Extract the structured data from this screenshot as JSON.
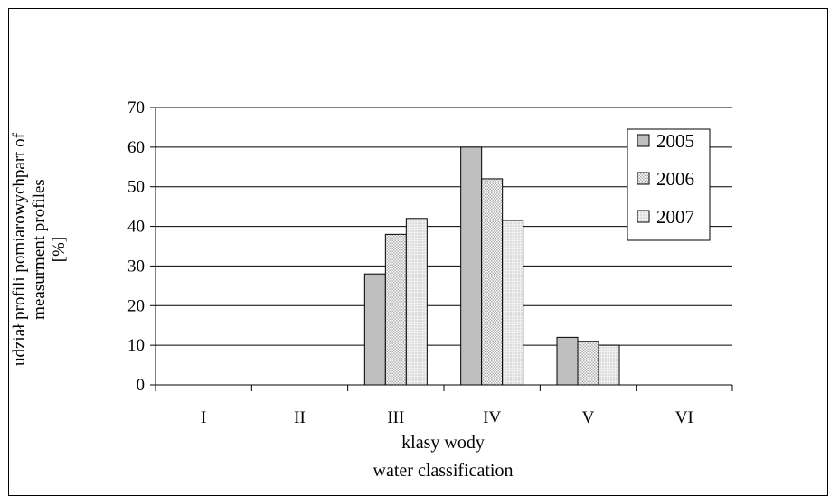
{
  "chart_data": {
    "type": "bar",
    "title": "",
    "categories": [
      "I",
      "II",
      "III",
      "IV",
      "V",
      "VI"
    ],
    "series": [
      {
        "name": "2005",
        "values": [
          0,
          0,
          28,
          60,
          12,
          0
        ]
      },
      {
        "name": "2006",
        "values": [
          0,
          0,
          38,
          52,
          11,
          0
        ]
      },
      {
        "name": "2007",
        "values": [
          0,
          0,
          42,
          41.5,
          10,
          0
        ]
      }
    ],
    "xlabel_lines": [
      "klasy wody",
      "water classification"
    ],
    "ylabel_lines": [
      "udział profili pomiarowychpart of",
      "measurment profiles",
      "[%]"
    ],
    "ylim": [
      0,
      70
    ],
    "yticks": [
      0,
      10,
      20,
      30,
      40,
      50,
      60,
      70
    ],
    "grid": true,
    "legend_position": "right",
    "colors": {
      "2005": "#bfbfbf",
      "2006": "#d9d9d9",
      "2007": "#e6e6e6",
      "grid": "#000000",
      "axis": "#000000"
    },
    "patterns": {
      "2005": "solid",
      "2006": "checker",
      "2007": "dots"
    }
  }
}
